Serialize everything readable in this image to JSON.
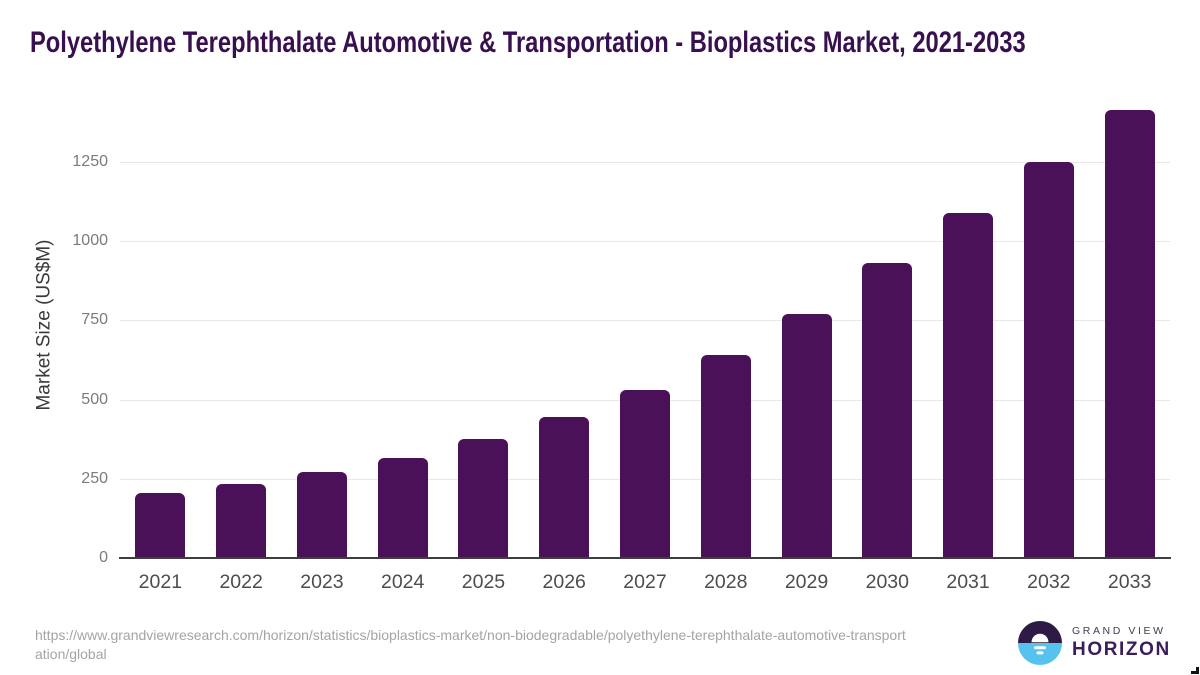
{
  "title": "Polyethylene Terephthalate Automotive & Transportation - Bioplastics Market, 2021-2033",
  "chart_data": {
    "type": "bar",
    "title": "Polyethylene Terephthalate Automotive & Transportation - Bioplastics Market, 2021-2033",
    "categories": [
      "2021",
      "2022",
      "2023",
      "2024",
      "2025",
      "2026",
      "2027",
      "2028",
      "2029",
      "2030",
      "2031",
      "2032",
      "2033"
    ],
    "values": [
      205,
      235,
      270,
      315,
      375,
      445,
      530,
      640,
      770,
      930,
      1090,
      1250,
      1415
    ],
    "xlabel": "",
    "ylabel": "Market Size (US$M)",
    "yticks": [
      0,
      250,
      500,
      750,
      1000,
      1250
    ],
    "ylim": [
      0,
      1430
    ],
    "grid": true,
    "legend_position": "none",
    "bar_color": "#4a1158"
  },
  "footer": {
    "source_url": "https://www.grandviewresearch.com/horizon/statistics/bioplastics-market/non-biodegradable/polyethylene-terephthalate-automotive-transportation/global"
  },
  "logo": {
    "brand_top": "GRAND VIEW",
    "brand_bottom": "HORIZON",
    "circle_top_color": "#2d1b45",
    "circle_bottom_color": "#56c2ee"
  }
}
